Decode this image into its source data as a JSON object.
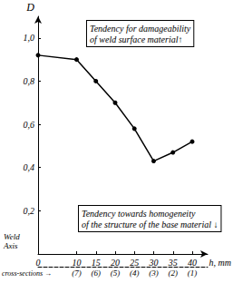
{
  "chart_data": {
    "type": "line",
    "y_label": "D",
    "x_label": "h, mm",
    "x": [
      0,
      10,
      15,
      20,
      25,
      30,
      35,
      40
    ],
    "values": [
      0.92,
      0.9,
      0.8,
      0.7,
      0.58,
      0.43,
      0.47,
      0.52
    ],
    "color": "#000000",
    "marker": "circle",
    "xlim": [
      0,
      44
    ],
    "xticks": [
      0,
      10,
      15,
      20,
      25,
      30,
      35,
      40
    ],
    "ylim": [
      0,
      1.1
    ],
    "yticks": [
      {
        "value": 0.2,
        "label": "0,2"
      },
      {
        "value": 0.4,
        "label": "0,4"
      },
      {
        "value": 0.6,
        "label": "0,6"
      },
      {
        "value": 0.8,
        "label": "0,8"
      },
      {
        "value": 1.0,
        "label": "1,0"
      }
    ],
    "grid": false,
    "cross_sections": {
      "label": "cross-sections →",
      "ticks": [
        {
          "value": 10,
          "label": "(7)"
        },
        {
          "value": 15,
          "label": "(6)"
        },
        {
          "value": 20,
          "label": "(5)"
        },
        {
          "value": 25,
          "label": "(4)"
        },
        {
          "value": 30,
          "label": "(3)"
        },
        {
          "value": 35,
          "label": "(2)"
        },
        {
          "value": 40,
          "label": "(1)"
        }
      ]
    },
    "origin_label": "Weld\nAxis",
    "annotations": [
      "Tendency for damageability\nof weld surface material↑",
      "Tendency towards homogeneity\nof the structure of the base material ↓"
    ]
  }
}
